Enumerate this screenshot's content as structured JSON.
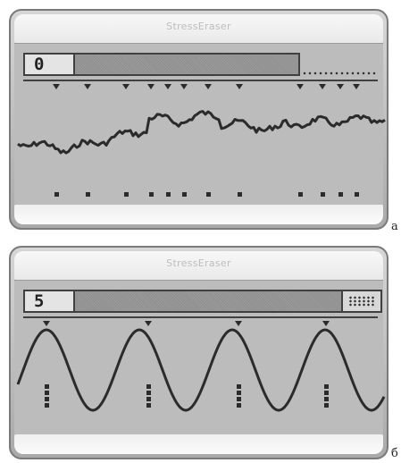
{
  "panel_a": {
    "title": "StressEraser",
    "counter": "0",
    "label": "а"
  },
  "panel_b": {
    "title": "StressEraser",
    "counter": "5",
    "label": "б"
  },
  "colors": {
    "device_body": "#b8b8b8",
    "screen": "#bcbcbc",
    "trace": "#2b2b2b",
    "title_text": "#bdbdbd"
  },
  "icons": {
    "marker": "down-triangle-marker-icon",
    "tick": "square-tick-icon"
  }
}
